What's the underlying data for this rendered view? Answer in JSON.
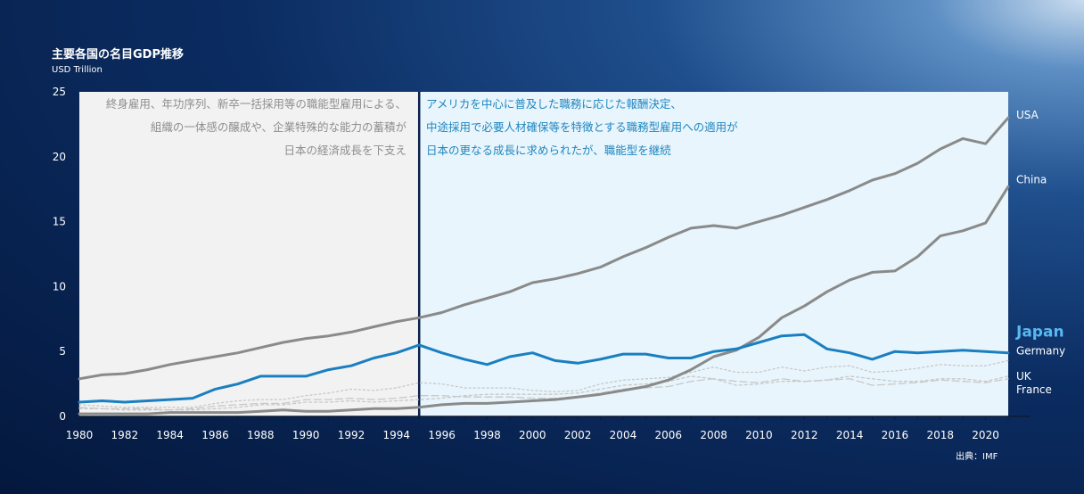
{
  "chart_title": "主要各国の名目GDP推移",
  "unit_label": "USD Trillion",
  "note_left": [
    "終身雇用、年功序列、新卒一括採用等の職能型雇用による、",
    "組織の一体感の醸成や、企業特殊的な能力の蓄積が",
    "日本の経済成長を下支え"
  ],
  "note_right": [
    "アメリカを中心に普及した職務に応じた報酬決定、",
    "中途採用で必要人材確保等を特徴とする職務型雇用への適用が",
    "日本の更なる成長に求められたが、職能型を継続"
  ],
  "source": "出典：IMF",
  "colors": {
    "left_panel": "#f2f2f2",
    "right_panel": "#e8f5fc",
    "divider": "#0b1f4a",
    "gray_line": "#8a8a8a",
    "japan": "#1a7fc1",
    "japan_label": "#58b8f0",
    "minor_line": "#c8c8c8"
  },
  "chart_data": {
    "type": "line",
    "title": "主要各国の名目GDP推移",
    "ylabel": "USD Trillion",
    "ylim": [
      0,
      25
    ],
    "yticks": [
      0,
      5,
      10,
      15,
      20,
      25
    ],
    "x": [
      1980,
      1981,
      1982,
      1983,
      1984,
      1985,
      1986,
      1987,
      1988,
      1989,
      1990,
      1991,
      1992,
      1993,
      1994,
      1995,
      1996,
      1997,
      1998,
      1999,
      2000,
      2001,
      2002,
      2003,
      2004,
      2005,
      2006,
      2007,
      2008,
      2009,
      2010,
      2011,
      2012,
      2013,
      2014,
      2015,
      2016,
      2017,
      2018,
      2019,
      2020,
      2021
    ],
    "xticks": [
      1980,
      1982,
      1984,
      1986,
      1988,
      1990,
      1992,
      1994,
      1996,
      1998,
      2000,
      2002,
      2004,
      2006,
      2008,
      2010,
      2012,
      2014,
      2016,
      2018,
      2020
    ],
    "divider_year": 1995,
    "series": [
      {
        "name": "USA",
        "style": "gray",
        "values": [
          2.9,
          3.2,
          3.3,
          3.6,
          4.0,
          4.3,
          4.6,
          4.9,
          5.3,
          5.7,
          6.0,
          6.2,
          6.5,
          6.9,
          7.3,
          7.6,
          8.0,
          8.6,
          9.1,
          9.6,
          10.3,
          10.6,
          11.0,
          11.5,
          12.3,
          13.0,
          13.8,
          14.5,
          14.7,
          14.5,
          15.0,
          15.5,
          16.1,
          16.7,
          17.4,
          18.2,
          18.7,
          19.5,
          20.6,
          21.4,
          21.0,
          23.0
        ]
      },
      {
        "name": "China",
        "style": "gray",
        "values": [
          0.2,
          0.2,
          0.2,
          0.2,
          0.3,
          0.3,
          0.3,
          0.3,
          0.4,
          0.5,
          0.4,
          0.4,
          0.5,
          0.6,
          0.6,
          0.7,
          0.9,
          1.0,
          1.0,
          1.1,
          1.2,
          1.3,
          1.5,
          1.7,
          2.0,
          2.3,
          2.8,
          3.6,
          4.6,
          5.1,
          6.1,
          7.6,
          8.5,
          9.6,
          10.5,
          11.1,
          11.2,
          12.3,
          13.9,
          14.3,
          14.9,
          17.7
        ]
      },
      {
        "name": "Japan",
        "style": "japan",
        "values": [
          1.1,
          1.2,
          1.1,
          1.2,
          1.3,
          1.4,
          2.1,
          2.5,
          3.1,
          3.1,
          3.1,
          3.6,
          3.9,
          4.5,
          4.9,
          5.5,
          4.9,
          4.4,
          4.0,
          4.6,
          4.9,
          4.3,
          4.1,
          4.4,
          4.8,
          4.8,
          4.5,
          4.5,
          5.0,
          5.2,
          5.7,
          6.2,
          6.3,
          5.2,
          4.9,
          4.4,
          5.0,
          4.9,
          5.0,
          5.1,
          5.0,
          4.9
        ]
      },
      {
        "name": "Germany",
        "style": "minor",
        "dash": "2,3",
        "values": [
          0.9,
          0.8,
          0.7,
          0.7,
          0.7,
          0.7,
          1.0,
          1.2,
          1.3,
          1.3,
          1.6,
          1.8,
          2.1,
          2.0,
          2.2,
          2.6,
          2.5,
          2.2,
          2.2,
          2.2,
          2.0,
          1.9,
          2.0,
          2.5,
          2.8,
          2.9,
          3.0,
          3.4,
          3.8,
          3.4,
          3.4,
          3.8,
          3.5,
          3.8,
          3.9,
          3.4,
          3.5,
          3.7,
          4.0,
          3.9,
          3.9,
          4.3
        ]
      },
      {
        "name": "UK",
        "style": "minor",
        "dash": "3,3",
        "values": [
          0.6,
          0.6,
          0.5,
          0.5,
          0.5,
          0.5,
          0.6,
          0.7,
          0.9,
          0.9,
          1.1,
          1.1,
          1.2,
          1.1,
          1.2,
          1.3,
          1.4,
          1.6,
          1.7,
          1.7,
          1.7,
          1.7,
          1.8,
          2.1,
          2.4,
          2.5,
          2.7,
          3.1,
          2.9,
          2.4,
          2.5,
          2.7,
          2.7,
          2.8,
          3.1,
          2.9,
          2.7,
          2.7,
          2.9,
          2.9,
          2.7,
          3.1
        ]
      },
      {
        "name": "France",
        "style": "minor",
        "dash": "8,4",
        "values": [
          0.7,
          0.6,
          0.6,
          0.6,
          0.5,
          0.6,
          0.8,
          0.9,
          1.0,
          1.0,
          1.3,
          1.3,
          1.4,
          1.3,
          1.4,
          1.6,
          1.6,
          1.5,
          1.5,
          1.5,
          1.4,
          1.4,
          1.5,
          1.8,
          2.1,
          2.2,
          2.3,
          2.7,
          2.9,
          2.7,
          2.6,
          2.9,
          2.7,
          2.8,
          2.9,
          2.4,
          2.5,
          2.6,
          2.8,
          2.7,
          2.6,
          2.9
        ]
      }
    ]
  }
}
